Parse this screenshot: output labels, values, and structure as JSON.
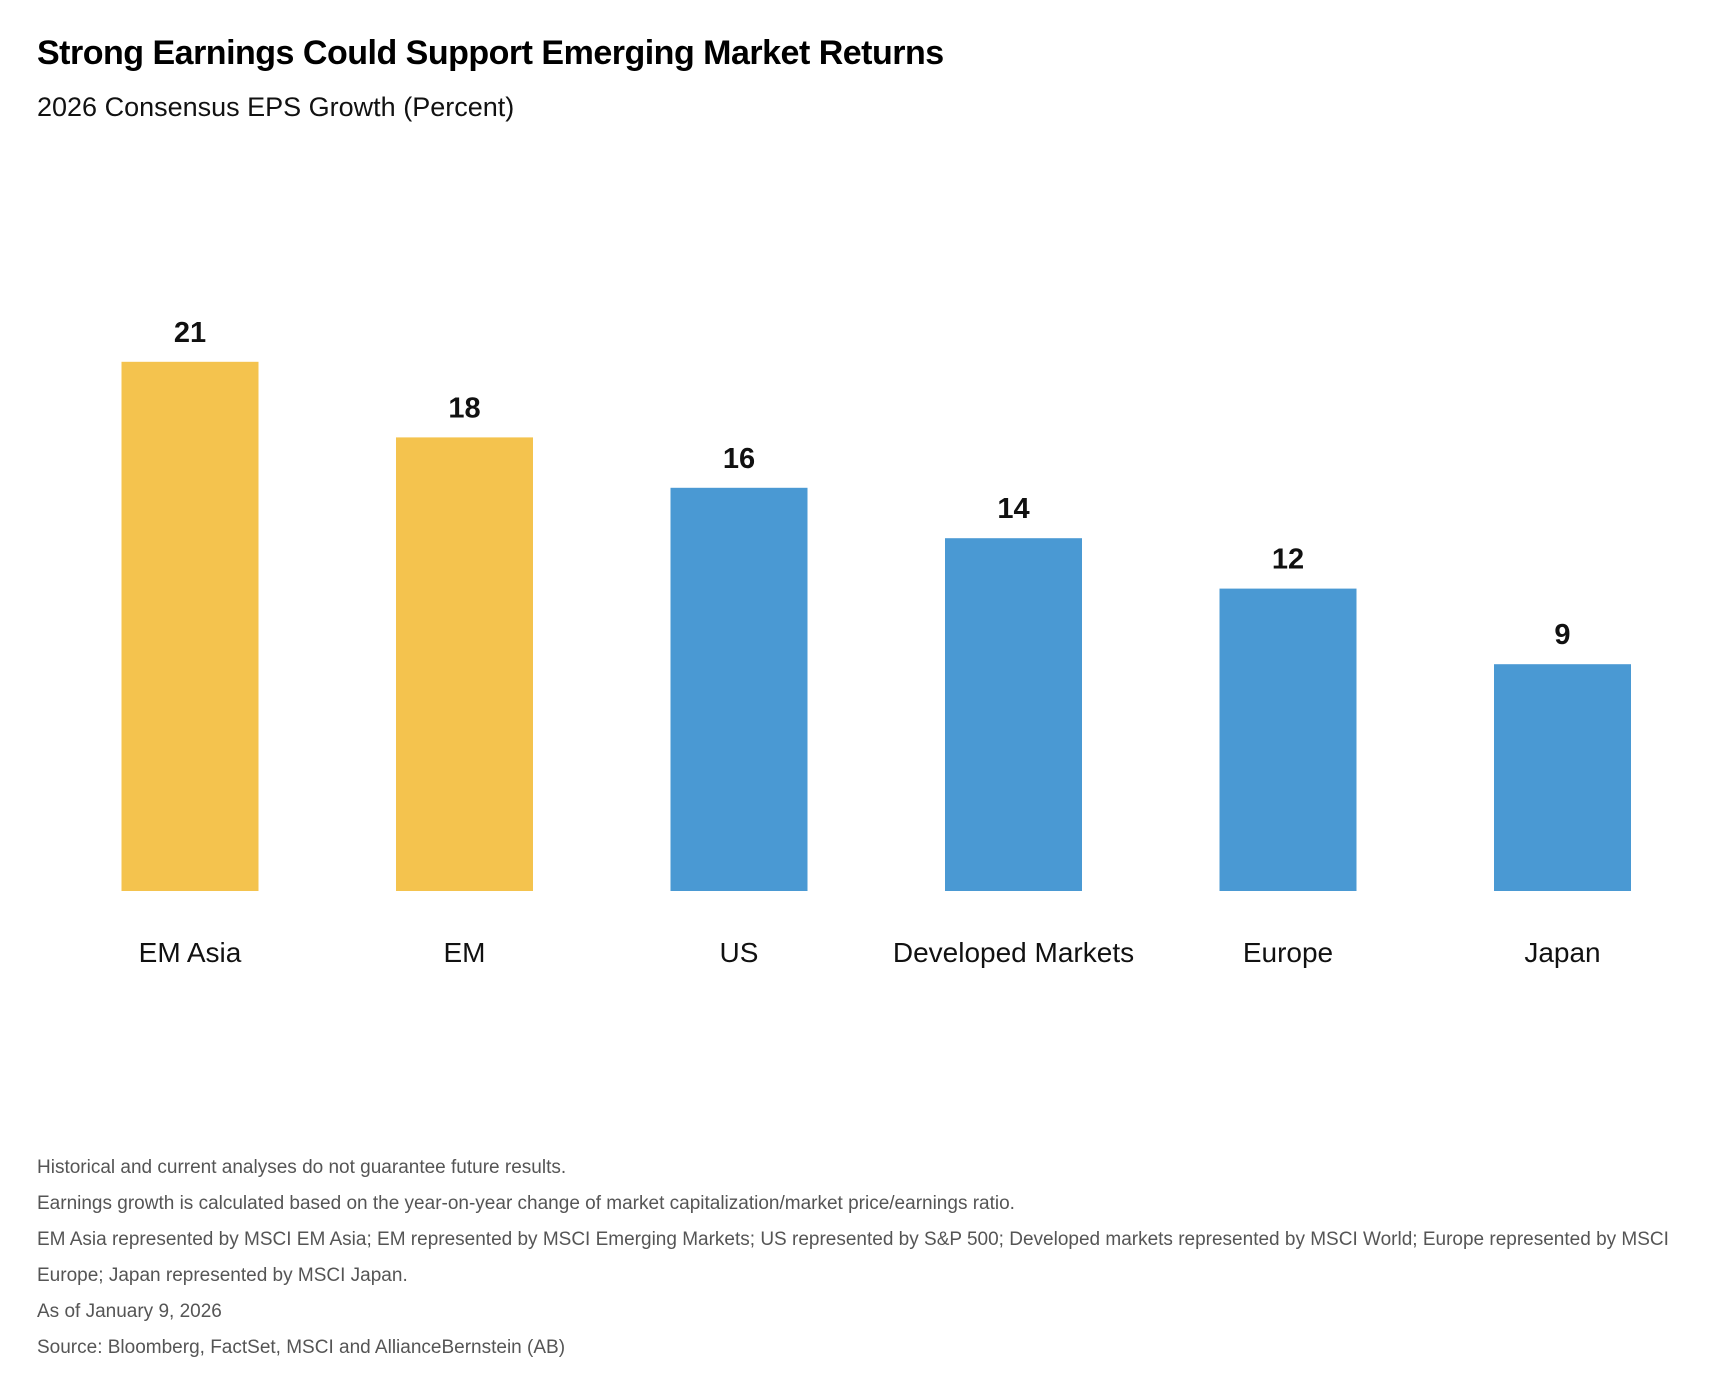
{
  "chart_data": {
    "type": "bar",
    "title": "Strong Earnings Could Support Emerging Market Returns",
    "subtitle": "2026 Consensus EPS Growth (Percent)",
    "categories": [
      "EM Asia",
      "EM",
      "US",
      "Developed Markets",
      "Europe",
      "Japan"
    ],
    "values": [
      21,
      18,
      16,
      14,
      12,
      9
    ],
    "bar_colors": [
      "#F4C34E",
      "#F4C34E",
      "#4A99D3",
      "#4A99D3",
      "#4A99D3",
      "#4A99D3"
    ],
    "data_labels": true,
    "grid": false,
    "axes_visible": false,
    "ylim": [
      0,
      21
    ]
  },
  "footnotes": [
    "Historical and current analyses do not guarantee future results.",
    "Earnings growth is calculated based on the year-on-year change of market capitalization/market price/earnings ratio.",
    "EM Asia represented by MSCI EM Asia; EM represented by MSCI Emerging Markets; US represented by S&P 500; Developed markets represented by MSCI World; Europe represented by MSCI Europe; Japan represented by MSCI Japan.",
    "As of January 9, 2026",
    "Source: Bloomberg, FactSet, MSCI and  AllianceBernstein (AB)"
  ]
}
